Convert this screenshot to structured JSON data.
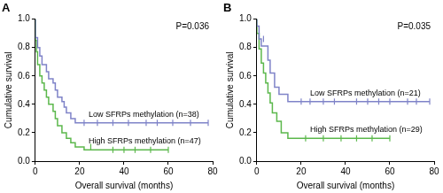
{
  "chart_data": [
    {
      "type": "line",
      "title": "A",
      "annotation": "P=0.036",
      "x_label": "Overall survival (months)",
      "y_label": "Cumulative survival",
      "xlim": [
        0,
        80
      ],
      "xticks": [
        0,
        20,
        40,
        60,
        80
      ],
      "ylim": [
        0,
        1
      ],
      "yticks": [
        {
          "value": 0,
          "label": "0.0"
        },
        {
          "value": 0.2,
          "label": "0.2"
        },
        {
          "value": 0.4,
          "label": "0.4"
        },
        {
          "value": 0.6,
          "label": "0.6"
        },
        {
          "value": 0.8,
          "label": "0.8"
        },
        {
          "value": 1,
          "label": "1.0"
        }
      ],
      "grid": false,
      "line_style": "step",
      "marker": "tick",
      "series": [
        {
          "name": "Low SFRPs methylation (n=38)",
          "color": "#7f83c8",
          "x": [
            0,
            1,
            2,
            3,
            5,
            6,
            8,
            9,
            10,
            12,
            13,
            14,
            16,
            18,
            20,
            78
          ],
          "values": [
            1.0,
            0.87,
            0.8,
            0.74,
            0.68,
            0.63,
            0.58,
            0.55,
            0.5,
            0.45,
            0.42,
            0.38,
            0.34,
            0.3,
            0.27,
            0.27
          ],
          "censored": [
            22,
            28,
            35,
            42,
            50,
            55,
            62,
            70,
            78
          ]
        },
        {
          "name": "High SFRPs methylation (n=47)",
          "color": "#5cb84c",
          "x": [
            0,
            0.5,
            1,
            2,
            3,
            4,
            5,
            6,
            8,
            9,
            10,
            12,
            14,
            16,
            18,
            22,
            30,
            60
          ],
          "values": [
            1.0,
            0.85,
            0.77,
            0.68,
            0.6,
            0.55,
            0.5,
            0.45,
            0.4,
            0.35,
            0.3,
            0.25,
            0.2,
            0.16,
            0.13,
            0.1,
            0.08,
            0.08
          ],
          "censored": [
            25,
            35,
            40,
            45,
            52,
            60
          ]
        }
      ]
    },
    {
      "type": "line",
      "title": "B",
      "annotation": "P=0.035",
      "x_label": "Overall survival (months)",
      "y_label": "Cumulative survival",
      "xlim": [
        0,
        80
      ],
      "xticks": [
        0,
        20,
        40,
        60,
        80
      ],
      "ylim": [
        0,
        1
      ],
      "yticks": [
        {
          "value": 0,
          "label": "0.0"
        },
        {
          "value": 0.2,
          "label": "0.2"
        },
        {
          "value": 0.4,
          "label": "0.4"
        },
        {
          "value": 0.6,
          "label": "0.6"
        },
        {
          "value": 0.8,
          "label": "0.8"
        },
        {
          "value": 1,
          "label": "1.0"
        }
      ],
      "grid": false,
      "line_style": "step",
      "marker": "tick",
      "series": [
        {
          "name": "Low SFRPs methylation (n=21)",
          "color": "#7f83c8",
          "x": [
            0,
            1,
            2,
            5,
            6,
            8,
            10,
            14,
            18,
            78
          ],
          "values": [
            1.0,
            0.95,
            0.86,
            0.81,
            0.71,
            0.62,
            0.52,
            0.47,
            0.42,
            0.42
          ],
          "censored": [
            3,
            20,
            24,
            30,
            35,
            45,
            50,
            55,
            60,
            68,
            72,
            78
          ]
        },
        {
          "name": "High SFRPs methylation (n=29)",
          "color": "#5cb84c",
          "x": [
            0,
            1,
            2,
            3,
            4,
            5,
            6,
            7,
            9,
            11,
            14,
            18,
            60
          ],
          "values": [
            1.0,
            0.9,
            0.79,
            0.69,
            0.62,
            0.55,
            0.48,
            0.41,
            0.34,
            0.28,
            0.2,
            0.16,
            0.16
          ],
          "censored": [
            22,
            30,
            38,
            45,
            52,
            60
          ]
        }
      ]
    }
  ]
}
